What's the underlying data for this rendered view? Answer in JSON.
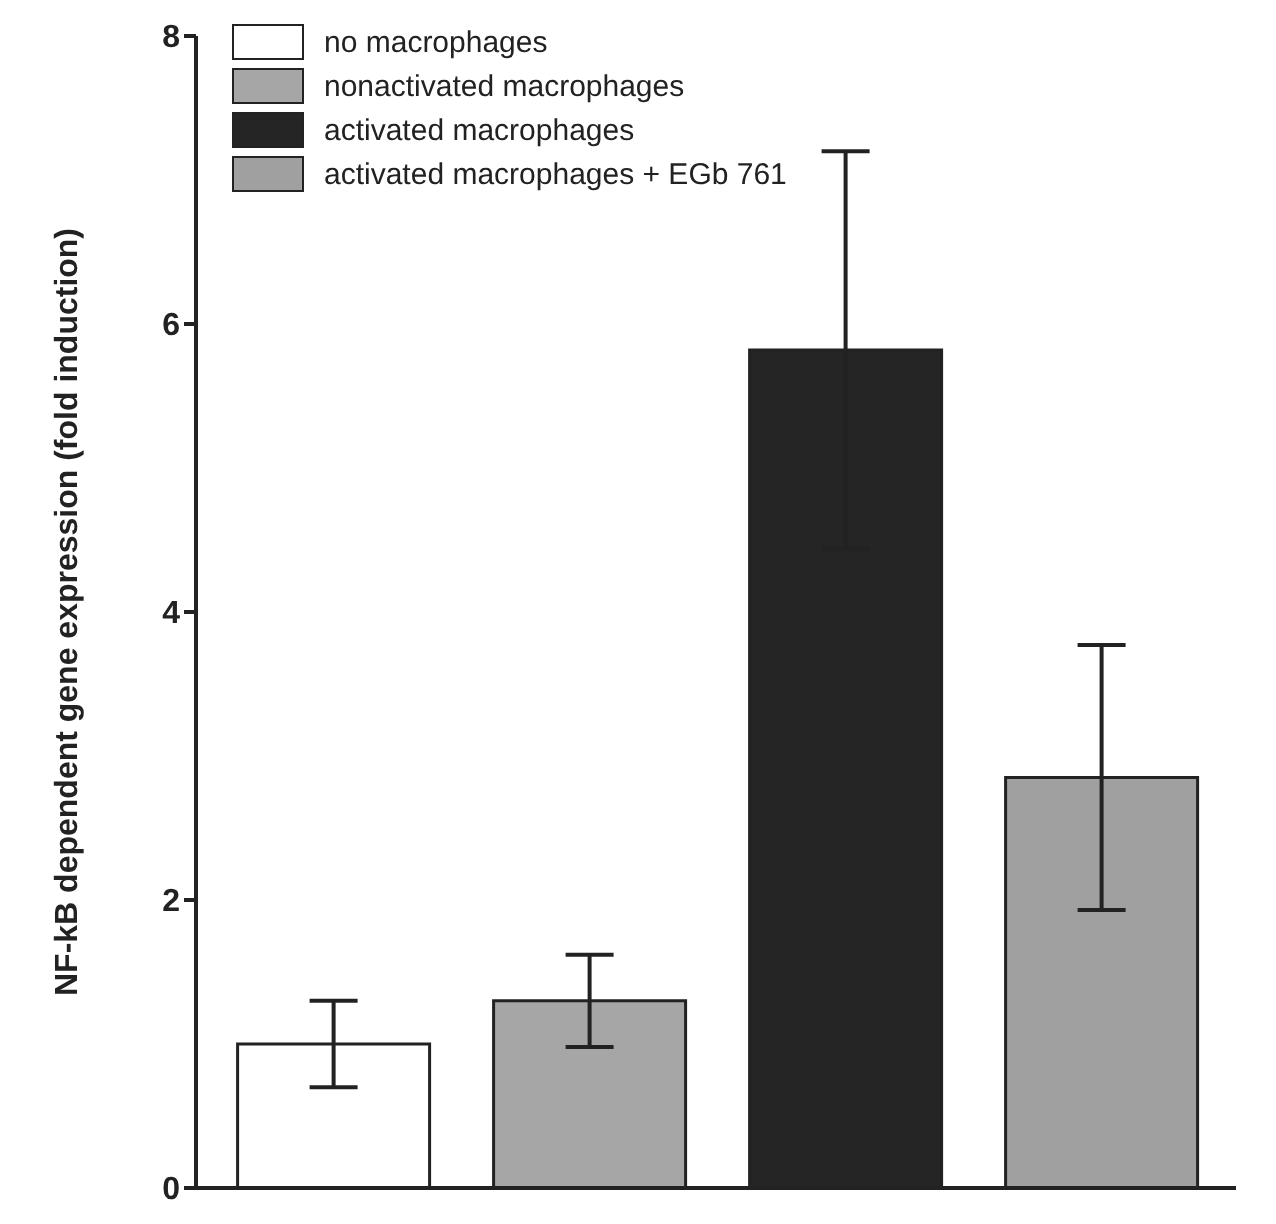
{
  "chart_data": {
    "type": "bar",
    "ylabel": "NF-kB dependent gene expression (fold induction)",
    "categories": [
      null
    ],
    "series": [
      {
        "name": "no macrophages",
        "color": "#ffffff",
        "values": [
          1.0
        ],
        "errors": [
          0.3
        ]
      },
      {
        "name": "nonactivated macrophages",
        "color": "#a6a6a6",
        "values": [
          1.3
        ],
        "errors": [
          0.32
        ]
      },
      {
        "name": "activated macrophages",
        "color": "#252525",
        "values": [
          5.82
        ],
        "errors": [
          1.38
        ]
      },
      {
        "name": "activated macrophages + EGb 761",
        "color": "#a0a0a0",
        "values": [
          2.85
        ],
        "errors": [
          0.92
        ]
      }
    ],
    "ylim": [
      0,
      8
    ],
    "yticks": [
      0,
      2,
      4,
      6,
      8
    ],
    "grid": false,
    "legend": "top left"
  }
}
